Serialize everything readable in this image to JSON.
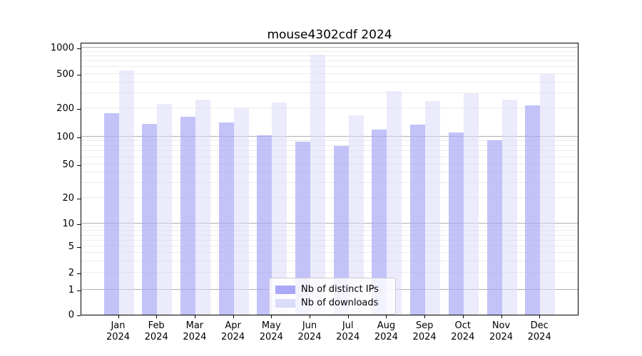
{
  "title": "mouse4302cdf 2024",
  "chart_data": {
    "type": "bar",
    "title": "mouse4302cdf 2024",
    "yscale": "symlog",
    "grid": true,
    "legend_position": "lower center",
    "months": [
      "Jan",
      "Feb",
      "Mar",
      "Apr",
      "May",
      "Jun",
      "Jul",
      "Aug",
      "Sep",
      "Oct",
      "Nov",
      "Dec"
    ],
    "year_label": "2024",
    "yticks": [
      0,
      1,
      2,
      5,
      10,
      20,
      50,
      100,
      200,
      500,
      1000
    ],
    "ylim": [
      0,
      1000
    ],
    "series": [
      {
        "name": "Nb of distinct IPs",
        "color": "#a9a9f7",
        "fill_alpha": 0.7,
        "values": [
          177,
          137,
          164,
          142,
          104,
          88,
          79,
          120,
          134,
          112,
          91,
          216
        ]
      },
      {
        "name": "Nb of downloads",
        "color": "#dbdbfa",
        "fill_alpha": 0.55,
        "values": [
          548,
          225,
          250,
          200,
          233,
          830,
          168,
          318,
          242,
          300,
          250,
          500
        ]
      }
    ]
  }
}
